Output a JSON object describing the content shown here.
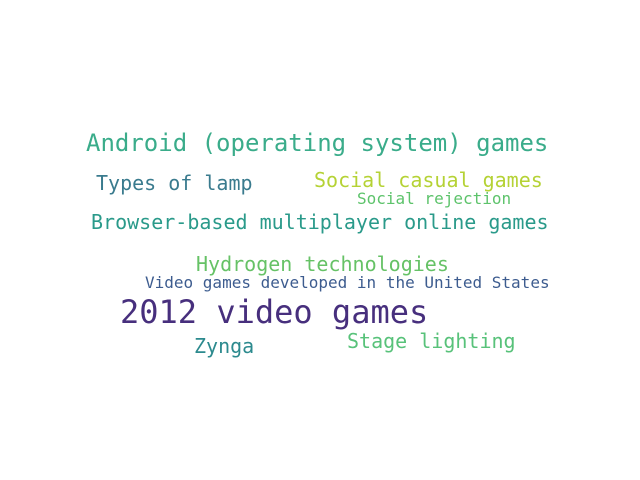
{
  "words": [
    {
      "text": "Android (operating system) games",
      "color": "#3aac8a"
    },
    {
      "text": "Types of lamp",
      "color": "#3a7b8e"
    },
    {
      "text": "Social casual games",
      "color": "#b5d235"
    },
    {
      "text": "Social rejection",
      "color": "#5dc36b"
    },
    {
      "text": "Browser-based multiplayer online games",
      "color": "#2a9a8a"
    },
    {
      "text": "Hydrogen technologies",
      "color": "#66c266"
    },
    {
      "text": "Video games developed in the United States",
      "color": "#3d5c8f"
    },
    {
      "text": "2012 video games",
      "color": "#472f7d"
    },
    {
      "text": "Zynga",
      "color": "#2c8a8e"
    },
    {
      "text": "Stage lighting",
      "color": "#58c27a"
    }
  ]
}
